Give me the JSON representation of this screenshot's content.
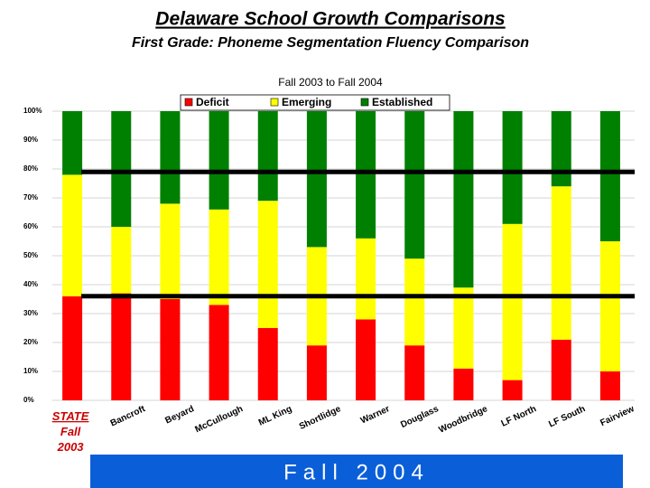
{
  "chart_data": {
    "type": "stacked_bar_percent",
    "title": "Delaware School Growth Comparisons",
    "subtitle": "First Grade: Phoneme Segmentation Fluency Comparison",
    "chart_subtitle": "Fall 2003 to Fall 2004",
    "footer": "Fall 2004",
    "categories": [
      [
        "STATE",
        "Fall",
        "2003"
      ],
      "Bancroft",
      "Beyard",
      "McCullough",
      "ML King",
      "Shortlidge",
      "Warner",
      "Douglass",
      "Woodbridge",
      "LF North",
      "LF South",
      "Fairview"
    ],
    "series": [
      {
        "name": "Deficit",
        "color": "#ff0000",
        "values": [
          36,
          37,
          35,
          33,
          25,
          19,
          28,
          19,
          11,
          7,
          21,
          10
        ]
      },
      {
        "name": "Emerging",
        "color": "#ffff00",
        "values": [
          42,
          23,
          33,
          33,
          44,
          34,
          28,
          30,
          28,
          54,
          53,
          45
        ]
      },
      {
        "name": "Established",
        "color": "#008000",
        "values": [
          22,
          40,
          32,
          34,
          31,
          47,
          44,
          51,
          61,
          39,
          26,
          45
        ]
      }
    ],
    "reference_lines": [
      79,
      36
    ],
    "ylim": [
      0,
      100
    ],
    "yticks": [
      {
        "value": 0,
        "label": "0%"
      },
      {
        "value": 10,
        "label": "10%"
      },
      {
        "value": 20,
        "label": "20%"
      },
      {
        "value": 30,
        "label": "30%"
      },
      {
        "value": 40,
        "label": "40%"
      },
      {
        "value": 50,
        "label": "50%"
      },
      {
        "value": 60,
        "label": "60%"
      },
      {
        "value": 70,
        "label": "70%"
      },
      {
        "value": 80,
        "label": "80%"
      },
      {
        "value": 90,
        "label": "90%"
      },
      {
        "value": 100,
        "label": "100%"
      }
    ],
    "grid": true,
    "legend": "top"
  }
}
